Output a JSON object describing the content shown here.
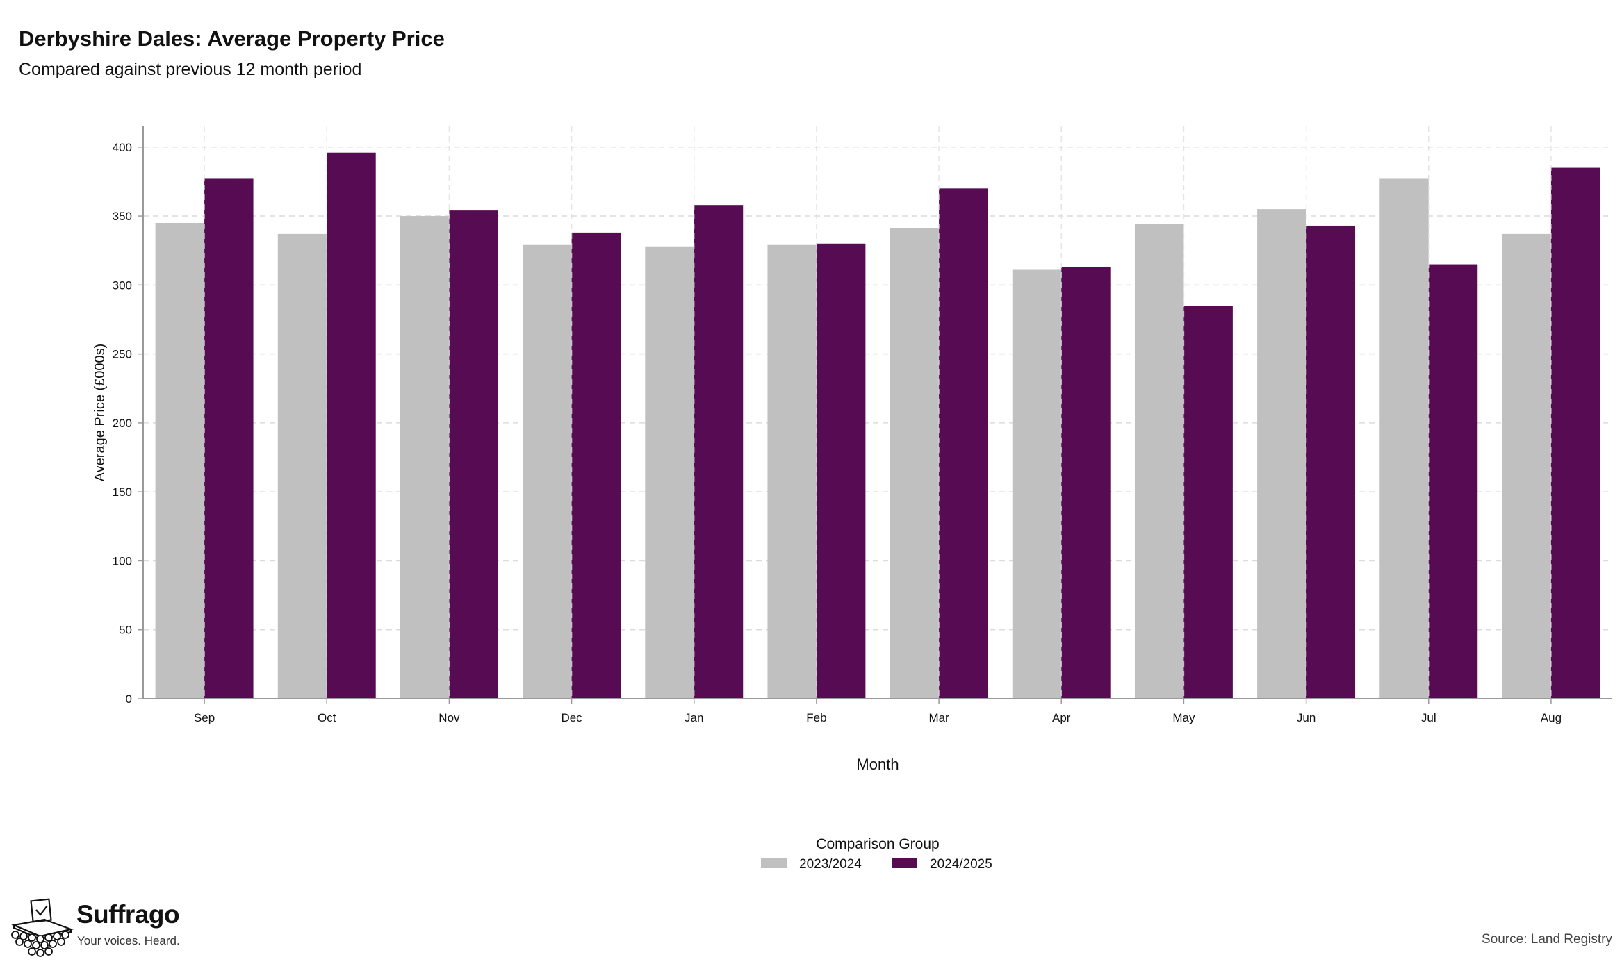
{
  "header": {
    "title": "Derbyshire Dales: Average Property Price",
    "subtitle": "Compared against previous 12 month period"
  },
  "footer": {
    "brand": "Suffrago",
    "tagline": "Your voices. Heard.",
    "source": "Source: Land Registry"
  },
  "colors": {
    "series_2023_2024": "#c0c0c0",
    "series_2024_2025": "#560b52",
    "grid": "#dcdcdc",
    "axis": "#9a9a9a"
  },
  "chart_data": {
    "type": "bar",
    "title": "Derbyshire Dales: Average Property Price",
    "subtitle": "Compared against previous 12 month period",
    "xlabel": "Month",
    "ylabel": "Average Price (£000s)",
    "ylim": [
      0,
      415
    ],
    "yticks": [
      0,
      50,
      100,
      150,
      200,
      250,
      300,
      350,
      400
    ],
    "grid": true,
    "legend_title": "Comparison Group",
    "legend_position": "bottom-center",
    "categories": [
      "Sep",
      "Oct",
      "Nov",
      "Dec",
      "Jan",
      "Feb",
      "Mar",
      "Apr",
      "May",
      "Jun",
      "Jul",
      "Aug"
    ],
    "series": [
      {
        "name": "2023/2024",
        "color": "#c0c0c0",
        "values": [
          345,
          337,
          350,
          329,
          328,
          329,
          341,
          311,
          344,
          355,
          377,
          337
        ]
      },
      {
        "name": "2024/2025",
        "color": "#560b52",
        "values": [
          377,
          396,
          354,
          338,
          358,
          330,
          370,
          313,
          285,
          343,
          315,
          385
        ]
      }
    ]
  }
}
